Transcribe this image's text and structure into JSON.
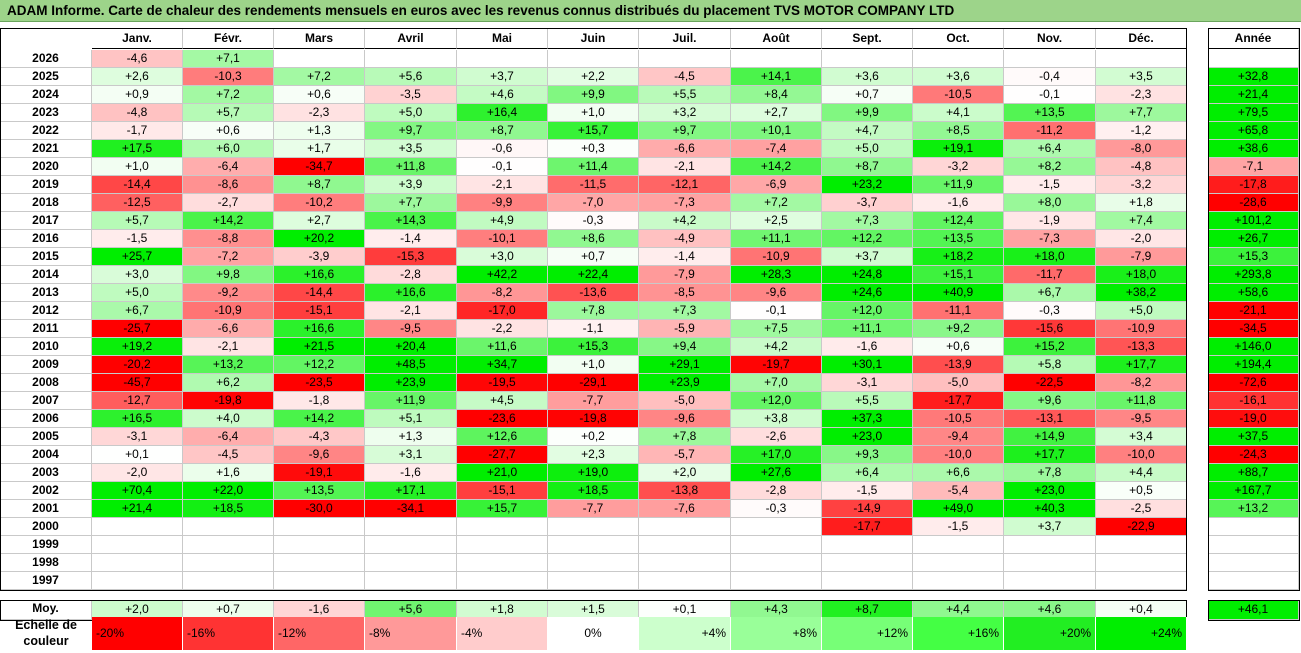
{
  "title": "ADAM Informe. Carte de chaleur des rendements mensuels en euros avec les revenus connus distribués du placement TVS MOTOR COMPANY LTD",
  "chart_data": {
    "type": "heatmap",
    "title": "ADAM Informe. Carte de chaleur des rendements mensuels en euros avec les revenus connus distribués du placement TVS MOTOR COMPANY LTD",
    "columns": [
      "Janv.",
      "Févr.",
      "Mars",
      "Avril",
      "Mai",
      "Juin",
      "Juil.",
      "Août",
      "Sept.",
      "Oct.",
      "Nov.",
      "Déc."
    ],
    "year_column": "Année",
    "rows": [
      {
        "year": "2026",
        "months": [
          "-4,6",
          "+7,1",
          "",
          "",
          "",
          "",
          "",
          "",
          "",
          "",
          "",
          ""
        ],
        "annual": ""
      },
      {
        "year": "2025",
        "months": [
          "+2,6",
          "-10,3",
          "+7,2",
          "+5,6",
          "+3,7",
          "+2,2",
          "-4,5",
          "+14,1",
          "+3,6",
          "+3,6",
          "-0,4",
          "+3,5"
        ],
        "annual": "+32,8"
      },
      {
        "year": "2024",
        "months": [
          "+0,9",
          "+7,2",
          "+0,6",
          "-3,5",
          "+4,6",
          "+9,9",
          "+5,5",
          "+8,4",
          "+0,7",
          "-10,5",
          "-0,1",
          "-2,3"
        ],
        "annual": "+21,4"
      },
      {
        "year": "2023",
        "months": [
          "-4,8",
          "+5,7",
          "-2,3",
          "+5,0",
          "+16,4",
          "+1,0",
          "+3,2",
          "+2,7",
          "+9,9",
          "+4,1",
          "+13,5",
          "+7,7"
        ],
        "annual": "+79,5"
      },
      {
        "year": "2022",
        "months": [
          "-1,7",
          "+0,6",
          "+1,3",
          "+9,7",
          "+8,7",
          "+15,7",
          "+9,7",
          "+10,1",
          "+4,7",
          "+8,5",
          "-11,2",
          "-1,2"
        ],
        "annual": "+65,8"
      },
      {
        "year": "2021",
        "months": [
          "+17,5",
          "+6,0",
          "+1,7",
          "+3,5",
          "-0,6",
          "+0,3",
          "-6,6",
          "-7,4",
          "+5,0",
          "+19,1",
          "+6,4",
          "-8,0"
        ],
        "annual": "+38,6"
      },
      {
        "year": "2020",
        "months": [
          "+1,0",
          "-6,4",
          "-34,7",
          "+11,8",
          "-0,1",
          "+11,4",
          "-2,1",
          "+14,2",
          "+8,7",
          "-3,2",
          "+8,2",
          "-4,8"
        ],
        "annual": "-7,1"
      },
      {
        "year": "2019",
        "months": [
          "-14,4",
          "-8,6",
          "+8,7",
          "+3,9",
          "-2,1",
          "-11,5",
          "-12,1",
          "-6,9",
          "+23,2",
          "+11,9",
          "-1,5",
          "-3,2"
        ],
        "annual": "-17,8"
      },
      {
        "year": "2018",
        "months": [
          "-12,5",
          "-2,7",
          "-10,2",
          "+7,7",
          "-9,9",
          "-7,0",
          "-7,3",
          "+7,2",
          "-3,7",
          "-1,6",
          "+8,0",
          "+1,8"
        ],
        "annual": "-28,6"
      },
      {
        "year": "2017",
        "months": [
          "+5,7",
          "+14,2",
          "+2,7",
          "+14,3",
          "+4,9",
          "-0,3",
          "+4,2",
          "+2,5",
          "+7,3",
          "+12,4",
          "-1,9",
          "+7,4"
        ],
        "annual": "+101,2"
      },
      {
        "year": "2016",
        "months": [
          "-1,5",
          "-8,8",
          "+20,2",
          "-1,4",
          "-10,1",
          "+8,6",
          "-4,9",
          "+11,1",
          "+12,2",
          "+13,5",
          "-7,3",
          "-2,0"
        ],
        "annual": "+26,7"
      },
      {
        "year": "2015",
        "months": [
          "+25,7",
          "-7,2",
          "-3,9",
          "-15,3",
          "+3,0",
          "+0,7",
          "-1,4",
          "-10,9",
          "+3,7",
          "+18,2",
          "+18,0",
          "-7,9"
        ],
        "annual": "+15,3"
      },
      {
        "year": "2014",
        "months": [
          "+3,0",
          "+9,8",
          "+16,6",
          "-2,8",
          "+42,2",
          "+22,4",
          "-7,9",
          "+28,3",
          "+24,8",
          "+15,1",
          "-11,7",
          "+18,0"
        ],
        "annual": "+293,8"
      },
      {
        "year": "2013",
        "months": [
          "+5,0",
          "-9,2",
          "-14,4",
          "+16,6",
          "-8,2",
          "-13,6",
          "-8,5",
          "-9,6",
          "+24,6",
          "+40,9",
          "+6,7",
          "+38,2"
        ],
        "annual": "+58,6"
      },
      {
        "year": "2012",
        "months": [
          "+6,7",
          "-10,9",
          "-15,1",
          "-2,1",
          "-17,0",
          "+7,8",
          "+7,3",
          "-0,1",
          "+12,0",
          "-11,1",
          "-0,3",
          "+5,0"
        ],
        "annual": "-21,1"
      },
      {
        "year": "2011",
        "months": [
          "-25,7",
          "-6,6",
          "+16,6",
          "-9,5",
          "-2,2",
          "-1,1",
          "-5,9",
          "+7,5",
          "+11,1",
          "+9,2",
          "-15,6",
          "-10,9"
        ],
        "annual": "-34,5"
      },
      {
        "year": "2010",
        "months": [
          "+19,2",
          "-2,1",
          "+21,5",
          "+20,4",
          "+11,6",
          "+15,3",
          "+9,4",
          "+4,2",
          "-1,6",
          "+0,6",
          "+15,2",
          "-13,3"
        ],
        "annual": "+146,0"
      },
      {
        "year": "2009",
        "months": [
          "-20,2",
          "+13,2",
          "+12,2",
          "+48,5",
          "+34,7",
          "+1,0",
          "+29,1",
          "-19,7",
          "+30,1",
          "-13,9",
          "+5,8",
          "+17,7"
        ],
        "annual": "+194,4"
      },
      {
        "year": "2008",
        "months": [
          "-45,7",
          "+6,2",
          "-23,5",
          "+23,9",
          "-19,5",
          "-29,1",
          "+23,9",
          "+7,0",
          "-3,1",
          "-5,0",
          "-22,5",
          "-8,2"
        ],
        "annual": "-72,6"
      },
      {
        "year": "2007",
        "months": [
          "-12,7",
          "-19,8",
          "-1,8",
          "+11,9",
          "+4,5",
          "-7,7",
          "-5,0",
          "+12,0",
          "+5,5",
          "-17,7",
          "+9,6",
          "+11,8"
        ],
        "annual": "-16,1"
      },
      {
        "year": "2006",
        "months": [
          "+16,5",
          "+4,0",
          "+14,2",
          "+5,1",
          "-23,6",
          "-19,8",
          "-9,6",
          "+3,8",
          "+37,3",
          "-10,5",
          "-13,1",
          "-9,5"
        ],
        "annual": "-19,0"
      },
      {
        "year": "2005",
        "months": [
          "-3,1",
          "-6,4",
          "-4,3",
          "+1,3",
          "+12,6",
          "+0,2",
          "+7,8",
          "-2,6",
          "+23,0",
          "-9,4",
          "+14,9",
          "+3,4"
        ],
        "annual": "+37,5"
      },
      {
        "year": "2004",
        "months": [
          "+0,1",
          "-4,5",
          "-9,6",
          "+3,1",
          "-27,7",
          "+2,3",
          "-5,7",
          "+17,0",
          "+9,3",
          "-10,0",
          "+17,7",
          "-10,0"
        ],
        "annual": "-24,3"
      },
      {
        "year": "2003",
        "months": [
          "-2,0",
          "+1,6",
          "-19,1",
          "-1,6",
          "+21,0",
          "+19,0",
          "+2,0",
          "+27,6",
          "+6,4",
          "+6,6",
          "+7,8",
          "+4,4"
        ],
        "annual": "+88,7"
      },
      {
        "year": "2002",
        "months": [
          "+70,4",
          "+22,0",
          "+13,5",
          "+17,1",
          "-15,1",
          "+18,5",
          "-13,8",
          "-2,8",
          "-1,5",
          "-5,4",
          "+23,0",
          "+0,5"
        ],
        "annual": "+167,7"
      },
      {
        "year": "2001",
        "months": [
          "+21,4",
          "+18,5",
          "-30,0",
          "-34,1",
          "+15,7",
          "-7,7",
          "-7,6",
          "-0,3",
          "-14,9",
          "+49,0",
          "+40,3",
          "-2,5"
        ],
        "annual": "+13,2"
      },
      {
        "year": "2000",
        "months": [
          "",
          "",
          "",
          "",
          "",
          "",
          "",
          "",
          "-17,7",
          "-1,5",
          "+3,7",
          "-22,9"
        ],
        "annual": ""
      },
      {
        "year": "1999",
        "months": [
          "",
          "",
          "",
          "",
          "",
          "",
          "",
          "",
          "",
          "",
          "",
          ""
        ],
        "annual": ""
      },
      {
        "year": "1998",
        "months": [
          "",
          "",
          "",
          "",
          "",
          "",
          "",
          "",
          "",
          "",
          "",
          ""
        ],
        "annual": ""
      },
      {
        "year": "1997",
        "months": [
          "",
          "",
          "",
          "",
          "",
          "",
          "",
          "",
          "",
          "",
          "",
          ""
        ],
        "annual": ""
      }
    ],
    "average": {
      "label": "Moy.",
      "months": [
        "+2,0",
        "+0,7",
        "-1,6",
        "+5,6",
        "+1,8",
        "+1,5",
        "+0,1",
        "+4,3",
        "+8,7",
        "+4,4",
        "+4,6",
        "+0,4"
      ],
      "annual": "+46,1"
    },
    "color_scale": {
      "label_line1": "Echelle de",
      "label_line2": "couleur",
      "steps": [
        {
          "label": "-20%",
          "value": -20,
          "color": "#ff0000"
        },
        {
          "label": "-16%",
          "value": -16,
          "color": "#ff3333"
        },
        {
          "label": "-12%",
          "value": -12,
          "color": "#ff6666"
        },
        {
          "label": "-8%",
          "value": -8,
          "color": "#ff9999"
        },
        {
          "label": "-4%",
          "value": -4,
          "color": "#ffcccc"
        },
        {
          "label": "0%",
          "value": 0,
          "color": "#ffffff"
        },
        {
          "label": "+4%",
          "value": 4,
          "color": "#ccffcc"
        },
        {
          "label": "+8%",
          "value": 8,
          "color": "#99ff99"
        },
        {
          "label": "+12%",
          "value": 12,
          "color": "#77ff77"
        },
        {
          "label": "+16%",
          "value": 16,
          "color": "#44ff44"
        },
        {
          "label": "+20%",
          "value": 20,
          "color": "#22ee22"
        },
        {
          "label": "+24%",
          "value": 24,
          "color": "#00ee00"
        }
      ]
    }
  }
}
